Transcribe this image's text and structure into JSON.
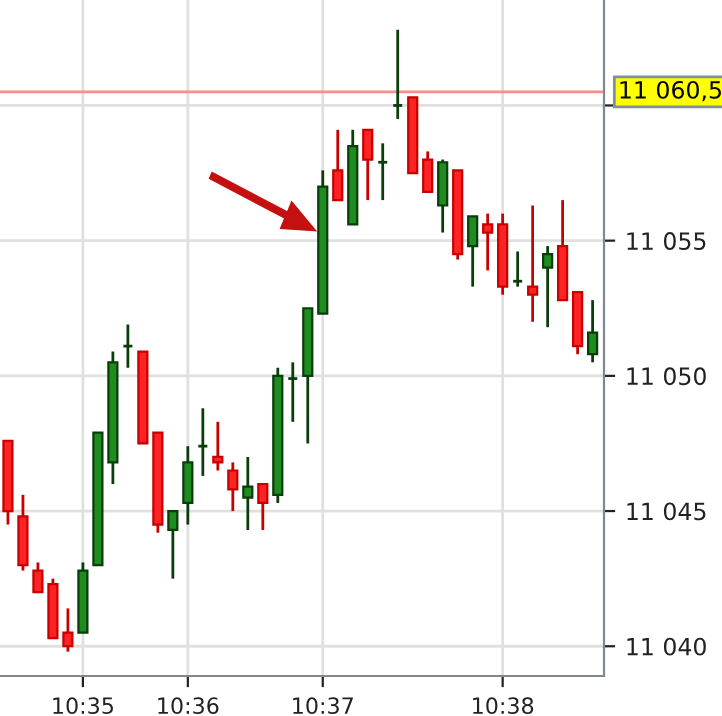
{
  "chart_data": {
    "type": "candlestick",
    "categories": [
      null,
      null,
      null,
      null,
      null,
      "10:35",
      null,
      null,
      null,
      null,
      null,
      null,
      "10:36",
      null,
      null,
      null,
      null,
      null,
      null,
      null,
      null,
      "10:37",
      null,
      null,
      null,
      null,
      null,
      null,
      null,
      null,
      null,
      null,
      null,
      "10:38",
      null,
      null,
      null,
      null,
      null,
      null
    ],
    "ohlc": [
      [
        11047.6,
        11047.6,
        11044.5,
        11045.0
      ],
      [
        11044.8,
        11045.6,
        11042.8,
        11043.0
      ],
      [
        11042.8,
        11043.1,
        11042.0,
        11042.0
      ],
      [
        11042.3,
        11042.5,
        11040.3,
        11040.3
      ],
      [
        11040.5,
        11041.4,
        11039.8,
        11040.0
      ],
      [
        11040.5,
        11043.1,
        11040.5,
        11042.8
      ],
      [
        11043.0,
        11047.9,
        11043.0,
        11047.9
      ],
      [
        11046.8,
        11050.9,
        11046.0,
        11050.5
      ],
      [
        11051.1,
        11051.9,
        11050.3,
        11051.1
      ],
      [
        11050.9,
        11050.9,
        11047.5,
        11047.5
      ],
      [
        11047.9,
        11047.9,
        11044.2,
        11044.5
      ],
      [
        11044.3,
        11045.0,
        11042.5,
        11045.0
      ],
      [
        11045.3,
        11047.4,
        11044.5,
        11046.8
      ],
      [
        11047.4,
        11048.8,
        11046.3,
        11047.4
      ],
      [
        11047.0,
        11048.3,
        11046.5,
        11046.8
      ],
      [
        11046.5,
        11046.8,
        11045.0,
        11045.8
      ],
      [
        11045.5,
        11047.0,
        11044.3,
        11045.9
      ],
      [
        11046.0,
        11046.0,
        11044.3,
        11045.3
      ],
      [
        11045.6,
        11050.3,
        11045.3,
        11050.0
      ],
      [
        11049.9,
        11050.5,
        11048.3,
        11049.9
      ],
      [
        11050.0,
        11052.5,
        11047.5,
        11052.5
      ],
      [
        11052.3,
        11057.6,
        11052.3,
        11057.0
      ],
      [
        11057.6,
        11059.1,
        11056.5,
        11056.5
      ],
      [
        11055.6,
        11059.1,
        11055.6,
        11058.5
      ],
      [
        11059.1,
        11059.1,
        11056.5,
        11058.0
      ],
      [
        11057.9,
        11058.6,
        11056.5,
        11057.9
      ],
      [
        11060.0,
        11062.8,
        11059.5,
        11060.0
      ],
      [
        11060.3,
        11060.3,
        11057.5,
        11057.5
      ],
      [
        11058.0,
        11058.3,
        11056.8,
        11056.8
      ],
      [
        11056.3,
        11058.0,
        11055.3,
        11057.9
      ],
      [
        11057.6,
        11057.6,
        11054.3,
        11054.5
      ],
      [
        11054.8,
        11055.9,
        11053.3,
        11055.9
      ],
      [
        11055.6,
        11056.0,
        11053.9,
        11055.3
      ],
      [
        11055.6,
        11056.0,
        11053.0,
        11053.3
      ],
      [
        11053.5,
        11054.6,
        11053.3,
        11053.5
      ],
      [
        11053.3,
        11056.3,
        11052.0,
        11053.0
      ],
      [
        11054.0,
        11054.8,
        11051.8,
        11054.5
      ],
      [
        11054.8,
        11056.5,
        11052.8,
        11052.8
      ],
      [
        11053.1,
        11053.1,
        11050.8,
        11051.1
      ],
      [
        11050.8,
        11052.8,
        11050.5,
        11051.6
      ]
    ],
    "ylim": [
      11038.9,
      11063.9
    ],
    "yticks": [
      {
        "value": 11040,
        "label": "11 040"
      },
      {
        "value": 11045,
        "label": "11 045"
      },
      {
        "value": 11050,
        "label": "11 050"
      },
      {
        "value": 11055,
        "label": "11 055"
      },
      {
        "value": 11060,
        "label": null
      }
    ],
    "ref_lines": [
      {
        "axis": "y",
        "value": 11060.5,
        "label": "11 060,5",
        "color": "#ff8c8c"
      }
    ],
    "grid": true
  }
}
